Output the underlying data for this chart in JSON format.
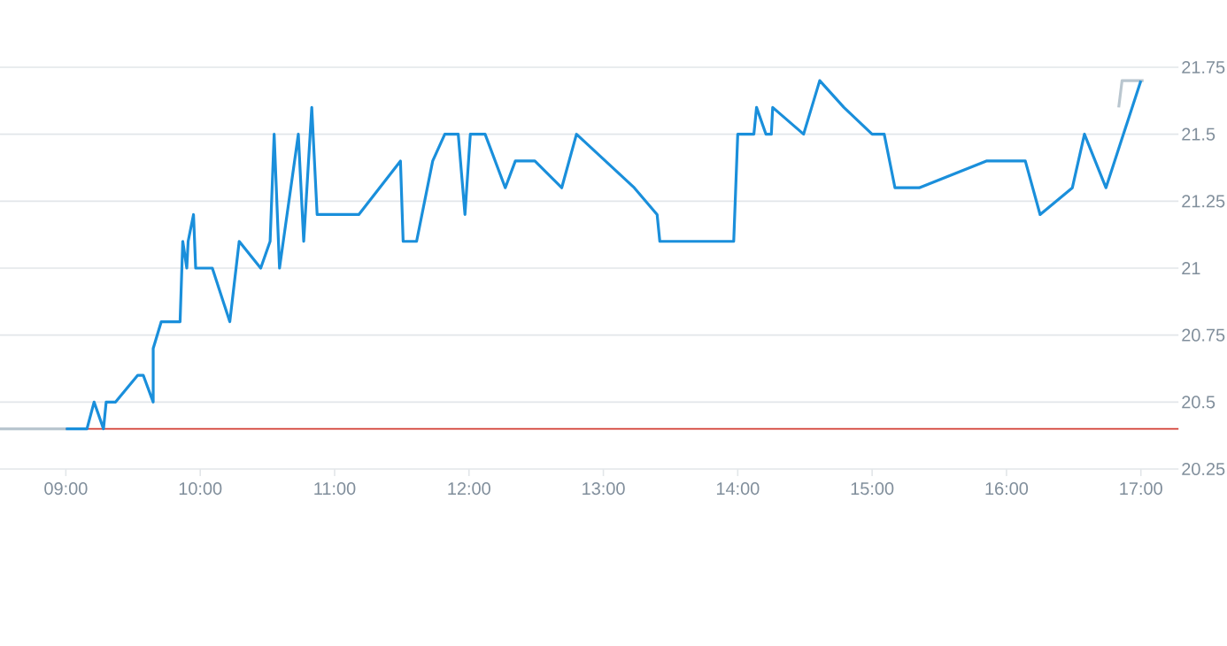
{
  "chart_data": {
    "type": "line",
    "xlim": [
      8.51,
      17.28
    ],
    "ylim": [
      20.25,
      21.75
    ],
    "xticks": [
      {
        "value": 9,
        "label": "09:00"
      },
      {
        "value": 10,
        "label": "10:00"
      },
      {
        "value": 11,
        "label": "11:00"
      },
      {
        "value": 12,
        "label": "12:00"
      },
      {
        "value": 13,
        "label": "13:00"
      },
      {
        "value": 14,
        "label": "14:00"
      },
      {
        "value": 15,
        "label": "15:00"
      },
      {
        "value": 16,
        "label": "16:00"
      },
      {
        "value": 17,
        "label": "17:00"
      }
    ],
    "yticks": [
      20.25,
      20.5,
      20.75,
      21,
      21.25,
      21.5,
      21.75
    ],
    "grid": "y",
    "marker": "none",
    "line_style": "solid",
    "ref_lines": [
      {
        "axis": "y",
        "value": 20.4,
        "color": "#d23c32"
      }
    ],
    "series": [
      {
        "color": "#b9c6cf",
        "x": [
          8.51,
          9.0,
          null,
          16.835,
          16.86,
          17.02
        ],
        "values": [
          20.4,
          20.4,
          null,
          21.6,
          21.7,
          21.7
        ]
      },
      {
        "color": "#1a8fdb",
        "x": [
          9.0,
          9.157,
          9.21,
          9.28,
          9.3,
          9.37,
          9.535,
          9.576,
          9.65,
          9.65,
          9.71,
          9.85,
          9.87,
          9.9,
          9.91,
          9.95,
          9.966,
          10.09,
          10.22,
          10.29,
          10.45,
          10.52,
          10.55,
          10.59,
          10.73,
          10.77,
          10.83,
          10.87,
          11.18,
          11.49,
          11.51,
          11.61,
          11.73,
          11.82,
          11.92,
          11.97,
          12.01,
          12.12,
          12.27,
          12.345,
          12.49,
          12.69,
          12.8,
          13.23,
          13.4,
          13.42,
          13.97,
          14.0,
          14.12,
          14.14,
          14.21,
          14.25,
          14.26,
          14.49,
          14.61,
          14.79,
          15.0,
          15.09,
          15.17,
          15.35,
          15.85,
          16.14,
          16.25,
          16.49,
          16.58,
          16.74,
          17.0
        ],
        "values": [
          20.4,
          20.4,
          20.5,
          20.4,
          20.5,
          20.5,
          20.6,
          20.6,
          20.5,
          20.7,
          20.8,
          20.8,
          21.1,
          21.0,
          21.1,
          21.2,
          21.0,
          21.0,
          20.8,
          21.1,
          21.0,
          21.1,
          21.5,
          21.0,
          21.5,
          21.1,
          21.6,
          21.2,
          21.2,
          21.4,
          21.1,
          21.1,
          21.4,
          21.5,
          21.5,
          21.2,
          21.5,
          21.5,
          21.3,
          21.4,
          21.4,
          21.3,
          21.5,
          21.3,
          21.2,
          21.1,
          21.1,
          21.5,
          21.5,
          21.6,
          21.5,
          21.5,
          21.6,
          21.5,
          21.7,
          21.6,
          21.5,
          21.5,
          21.3,
          21.3,
          21.4,
          21.4,
          21.2,
          21.3,
          21.5,
          21.3,
          21.7
        ]
      }
    ]
  }
}
